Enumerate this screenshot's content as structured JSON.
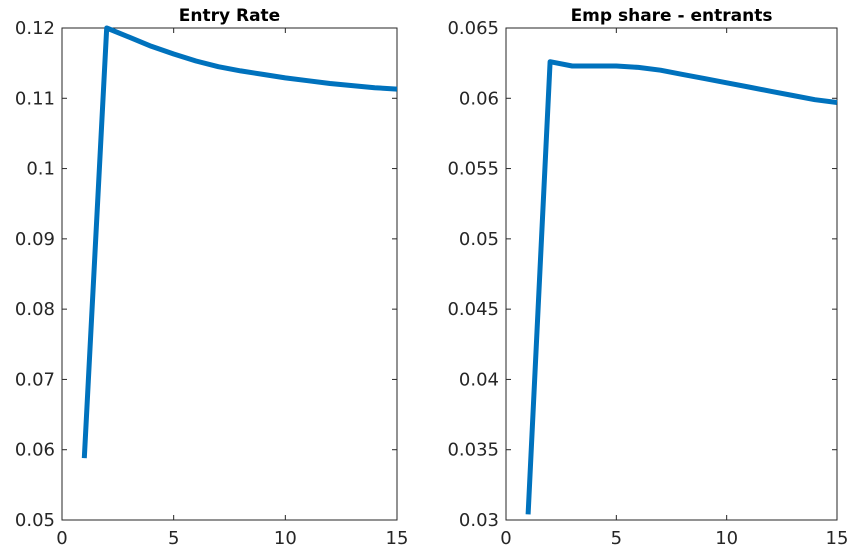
{
  "chart_data": [
    {
      "type": "line",
      "title": "Entry Rate",
      "xlabel": "",
      "ylabel": "",
      "xlim": [
        0,
        15
      ],
      "ylim": [
        0.05,
        0.12
      ],
      "xticks": [
        0,
        5,
        10,
        15
      ],
      "xtick_labels": [
        "0",
        "5",
        "10",
        "15"
      ],
      "yticks": [
        0.05,
        0.06,
        0.07,
        0.08,
        0.09,
        0.1,
        0.11,
        0.12
      ],
      "ytick_labels": [
        "0.05",
        "0.06",
        "0.07",
        "0.08",
        "0.09",
        "0.1",
        "0.11",
        "0.12"
      ],
      "grid": false,
      "color": "#0072BD",
      "x": [
        1,
        2,
        3,
        4,
        5,
        6,
        7,
        8,
        9,
        10,
        11,
        12,
        13,
        14,
        15
      ],
      "values": [
        0.0588,
        0.12,
        0.1187,
        0.1174,
        0.1163,
        0.1153,
        0.1145,
        0.1139,
        0.1134,
        0.1129,
        0.1125,
        0.1121,
        0.1118,
        0.1115,
        0.1113
      ]
    },
    {
      "type": "line",
      "title": "Emp share - entrants",
      "xlabel": "",
      "ylabel": "",
      "xlim": [
        0,
        15
      ],
      "ylim": [
        0.03,
        0.065
      ],
      "xticks": [
        0,
        5,
        10,
        15
      ],
      "xtick_labels": [
        "0",
        "5",
        "10",
        "15"
      ],
      "yticks": [
        0.03,
        0.035,
        0.04,
        0.045,
        0.05,
        0.055,
        0.06,
        0.065
      ],
      "ytick_labels": [
        "0.03",
        "0.035",
        "0.04",
        "0.045",
        "0.05",
        "0.055",
        "0.06",
        "0.065"
      ],
      "grid": false,
      "color": "#0072BD",
      "x": [
        1,
        2,
        3,
        4,
        5,
        6,
        7,
        8,
        9,
        10,
        11,
        12,
        13,
        14,
        15
      ],
      "values": [
        0.0304,
        0.0626,
        0.0623,
        0.0623,
        0.0623,
        0.0622,
        0.062,
        0.0617,
        0.0614,
        0.0611,
        0.0608,
        0.0605,
        0.0602,
        0.0599,
        0.0597
      ]
    }
  ]
}
